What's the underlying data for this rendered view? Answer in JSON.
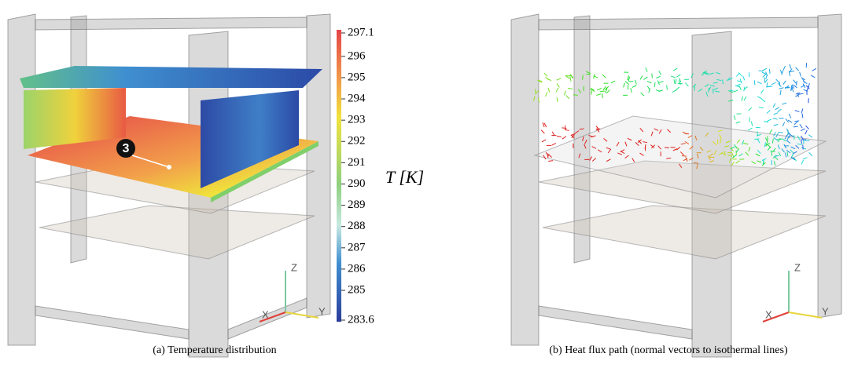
{
  "panels": [
    {
      "caption": "(a) Temperature distribution",
      "marker": "3",
      "axes": {
        "z": "Z",
        "x": "X",
        "y": "Y"
      }
    },
    {
      "caption": "(b) Heat flux path (normal vectors to isothermal lines)",
      "axes": {
        "z": "Z",
        "x": "X",
        "y": "Y"
      }
    }
  ],
  "colorbar": {
    "label": "T [K]",
    "range": [
      283.6,
      297.1
    ],
    "ticks": [
      283.6,
      285,
      286,
      287,
      288,
      289,
      290,
      291,
      292,
      293,
      294,
      295,
      296,
      297.1
    ]
  }
}
